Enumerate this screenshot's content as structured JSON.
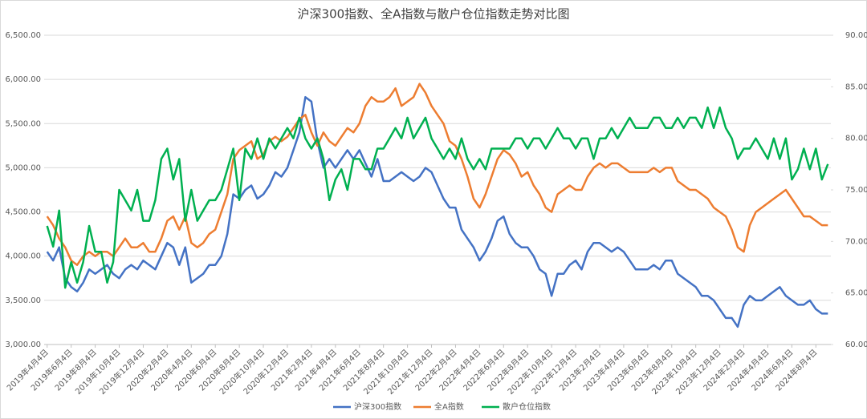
{
  "chart_data": {
    "type": "line",
    "title": "沪深300指数、全A指数与散户仓位指数走势对比图",
    "categories": [
      "2019年4月4日",
      null,
      null,
      null,
      "2019年6月4日",
      null,
      null,
      null,
      "2019年8月4日",
      null,
      null,
      null,
      "2019年10月4日",
      null,
      null,
      null,
      "2019年12月4日",
      null,
      null,
      null,
      "2020年2月4日",
      null,
      null,
      null,
      "2020年4月4日",
      null,
      null,
      null,
      "2020年6月4日",
      null,
      null,
      null,
      "2020年8月4日",
      null,
      null,
      null,
      "2020年10月4日",
      null,
      null,
      null,
      "2020年12月4日",
      null,
      null,
      null,
      "2021年2月4日",
      null,
      null,
      null,
      "2021年4月4日",
      null,
      null,
      null,
      "2021年6月4日",
      null,
      null,
      null,
      "2021年8月4日",
      null,
      null,
      null,
      "2021年10月4日",
      null,
      null,
      null,
      "2021年12月4日",
      null,
      null,
      null,
      "2022年2月4日",
      null,
      null,
      null,
      "2022年4月4日",
      null,
      null,
      null,
      "2022年6月4日",
      null,
      null,
      null,
      "2022年8月4日",
      null,
      null,
      null,
      "2022年10月4日",
      null,
      null,
      null,
      "2022年12月4日",
      null,
      null,
      null,
      "2023年2月4日",
      null,
      null,
      null,
      "2023年4月4日",
      null,
      null,
      null,
      "2023年6月4日",
      null,
      null,
      null,
      "2023年8月4日",
      null,
      null,
      null,
      "2023年10月4日",
      null,
      null,
      null,
      "2023年12月4日",
      null,
      null,
      null,
      "2024年2月4日",
      null,
      null,
      null,
      "2024年4月4日",
      null,
      null,
      null,
      "2024年6月4日",
      null,
      null,
      null,
      "2024年8月4日",
      null,
      null
    ],
    "series": [
      {
        "name": "沪深300指数",
        "color": "#4472c4",
        "values": [
          4050,
          3950,
          4100,
          3750,
          3650,
          3600,
          3700,
          3850,
          3800,
          3850,
          3900,
          3800,
          3750,
          3850,
          3900,
          3850,
          3950,
          3900,
          3850,
          4000,
          4150,
          4100,
          3900,
          4100,
          3700,
          3750,
          3800,
          3900,
          3900,
          4000,
          4250,
          4700,
          4650,
          4750,
          4800,
          4650,
          4700,
          4800,
          4950,
          4900,
          5000,
          5200,
          5400,
          5800,
          5750,
          5300,
          5000,
          5100,
          5000,
          5100,
          5200,
          5100,
          5200,
          5050,
          4900,
          5100,
          4850,
          4850,
          4900,
          4950,
          4900,
          4850,
          4900,
          5000,
          4950,
          4800,
          4650,
          4550,
          4550,
          4300,
          4200,
          4100,
          3950,
          4050,
          4200,
          4400,
          4450,
          4250,
          4150,
          4100,
          4100,
          4000,
          3850,
          3800,
          3550,
          3800,
          3800,
          3900,
          3950,
          3850,
          4050,
          4150,
          4150,
          4100,
          4050,
          4100,
          4050,
          3950,
          3850,
          3850,
          3850,
          3900,
          3850,
          3950,
          3950,
          3800,
          3750,
          3700,
          3650,
          3550,
          3550,
          3500,
          3400,
          3300,
          3300,
          3200,
          3450,
          3550,
          3500,
          3500,
          3550,
          3600,
          3650,
          3550,
          3500,
          3450,
          3450,
          3500,
          3400,
          3350,
          3350
        ]
      },
      {
        "name": "全A指数",
        "color": "#ed7d31",
        "values": [
          4450,
          4350,
          4200,
          4100,
          3950,
          3900,
          4000,
          4050,
          4000,
          4050,
          4050,
          4000,
          4100,
          4200,
          4100,
          4100,
          4150,
          4050,
          4050,
          4200,
          4400,
          4450,
          4300,
          4450,
          4150,
          4100,
          4150,
          4250,
          4300,
          4500,
          4700,
          5100,
          5200,
          5250,
          5300,
          5100,
          5150,
          5300,
          5350,
          5300,
          5350,
          5450,
          5550,
          5600,
          5400,
          5250,
          5400,
          5300,
          5250,
          5350,
          5450,
          5400,
          5500,
          5700,
          5800,
          5750,
          5750,
          5800,
          5900,
          5700,
          5750,
          5800,
          5950,
          5850,
          5700,
          5600,
          5500,
          5300,
          5250,
          5100,
          4900,
          4650,
          4550,
          4700,
          4900,
          5100,
          5200,
          5150,
          5050,
          4900,
          4950,
          4800,
          4700,
          4550,
          4500,
          4700,
          4750,
          4800,
          4750,
          4750,
          4900,
          5000,
          5050,
          5000,
          5050,
          5050,
          5000,
          4950,
          4950,
          4950,
          4950,
          5000,
          4950,
          5000,
          5000,
          4850,
          4800,
          4750,
          4750,
          4700,
          4650,
          4550,
          4500,
          4450,
          4300,
          4100,
          4050,
          4350,
          4500,
          4550,
          4600,
          4650,
          4700,
          4750,
          4650,
          4550,
          4450,
          4450,
          4400,
          4350,
          4350
        ]
      },
      {
        "name": "散户仓位指数",
        "color": "#00b050",
        "axis": "y2",
        "values": [
          71.5,
          69.5,
          73,
          65.5,
          68,
          66,
          68,
          71.5,
          69,
          69,
          66,
          68,
          75,
          74,
          73,
          75,
          72,
          72,
          74,
          78,
          79,
          76,
          78,
          72,
          75,
          72,
          73,
          74,
          74,
          75,
          77,
          79,
          74,
          79,
          78,
          80,
          78,
          80,
          79,
          80,
          81,
          80,
          82,
          80,
          79,
          80,
          78,
          74,
          76,
          77,
          75,
          78,
          78,
          77,
          77,
          79,
          79,
          80,
          81,
          80,
          82,
          80,
          81,
          82,
          80,
          79,
          78,
          79,
          78,
          80,
          78,
          77,
          78,
          77,
          79,
          79,
          79,
          79,
          80,
          80,
          79,
          80,
          80,
          79,
          80,
          81,
          80,
          80,
          79,
          80,
          80,
          78,
          80,
          80,
          81,
          80,
          81,
          82,
          81,
          81,
          81,
          82,
          82,
          81,
          81,
          82,
          81,
          82,
          82,
          81,
          83,
          81,
          83,
          81,
          80,
          78,
          79,
          79,
          80,
          79,
          78,
          80,
          78,
          80,
          76,
          77,
          79,
          77,
          79,
          76,
          77.5
        ]
      }
    ],
    "ylim": [
      3000,
      6500
    ],
    "yticks": [
      {
        "value": 3000,
        "label": "3,000.00"
      },
      {
        "value": 3500,
        "label": "3,500.00"
      },
      {
        "value": 4000,
        "label": "4,000.00"
      },
      {
        "value": 4500,
        "label": "4,500.00"
      },
      {
        "value": 5000,
        "label": "5,000.00"
      },
      {
        "value": 5500,
        "label": "5,500.00"
      },
      {
        "value": 6000,
        "label": "6,000.00"
      },
      {
        "value": 6500,
        "label": "6,500.00"
      }
    ],
    "y2lim": [
      60,
      90
    ],
    "y2ticks": [
      {
        "value": 60,
        "label": "60.00%"
      },
      {
        "value": 65,
        "label": "65.00%"
      },
      {
        "value": 70,
        "label": "70.00%"
      },
      {
        "value": 75,
        "label": "75.00%"
      },
      {
        "value": 80,
        "label": "80.00%"
      },
      {
        "value": 85,
        "label": "85.00%"
      },
      {
        "value": 90,
        "label": "90.00%"
      }
    ],
    "grid": true,
    "legend": "bottom"
  }
}
